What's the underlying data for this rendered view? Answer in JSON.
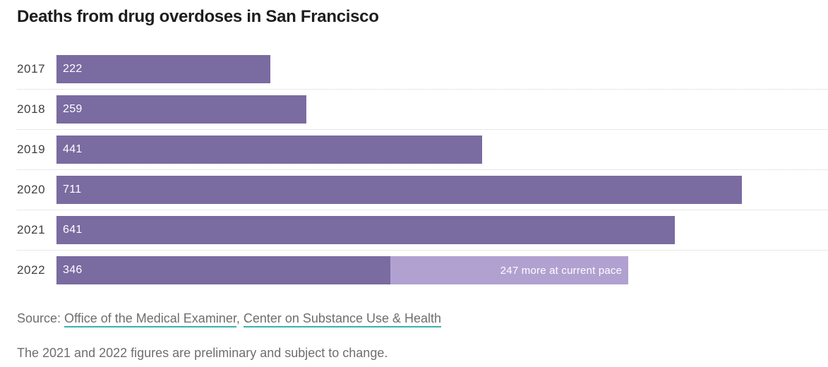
{
  "title": "Deaths from drug overdoses in San Francisco",
  "chart_data": {
    "type": "bar",
    "orientation": "horizontal",
    "title": "Deaths from drug overdoses in San Francisco",
    "categories": [
      "2017",
      "2018",
      "2019",
      "2020",
      "2021",
      "2022"
    ],
    "values": [
      222,
      259,
      441,
      711,
      641,
      346
    ],
    "value_labels": [
      "222",
      "259",
      "441",
      "711",
      "641",
      "346"
    ],
    "projection": {
      "year": "2022",
      "value": 247,
      "label": "247 more at current pace"
    },
    "axis_max": 800,
    "grid": "dotted-row-separators",
    "legend": "none",
    "bar_color": "#7a6ba1",
    "projection_color": "#b0a1d0",
    "value_label_color": "#ffffff"
  },
  "source": {
    "prefix": "Source: ",
    "links": [
      {
        "label": "Office of the Medical Examiner"
      },
      {
        "label": "Center on Substance Use & Health"
      }
    ],
    "separator": ", ",
    "link_underline_color": "#36b3ad"
  },
  "footnote": "The 2021 and 2022 figures are preliminary and subject to change.",
  "colors": {
    "title_text": "#1e1e1e",
    "axis_label_text": "#3f3f3f",
    "body_text": "#6e6e6e",
    "row_separator": "#d2d2d2",
    "scroll_thumb": "#4563d9"
  }
}
